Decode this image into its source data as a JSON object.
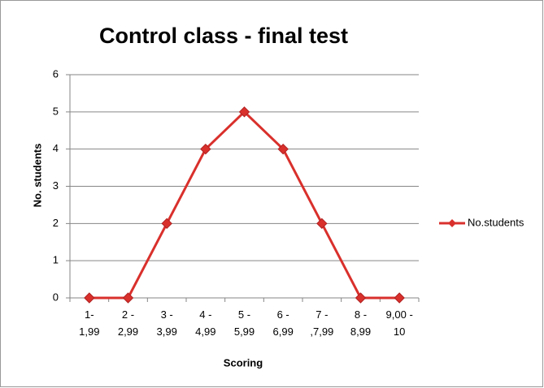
{
  "chart_data": {
    "type": "line",
    "title": "Control  class - final  test",
    "x_label": "Scoring",
    "y_label": "No. students",
    "categories": [
      "1-\n1,99",
      "2 -\n2,99",
      "3 -\n3,99",
      "4 -\n4,99",
      "5 -\n5,99",
      "6 -\n6,99",
      "7 -\n,7,99",
      "8 -\n8,99",
      "9,00 -\n10"
    ],
    "series": [
      {
        "name": "No.students",
        "color": "#d9302c",
        "values": [
          0,
          0,
          2,
          4,
          5,
          4,
          2,
          0,
          0
        ]
      }
    ],
    "ylim": [
      0,
      6
    ],
    "yticks": [
      0,
      1,
      2,
      3,
      4,
      5,
      6
    ],
    "grid": true,
    "legend": "right"
  }
}
